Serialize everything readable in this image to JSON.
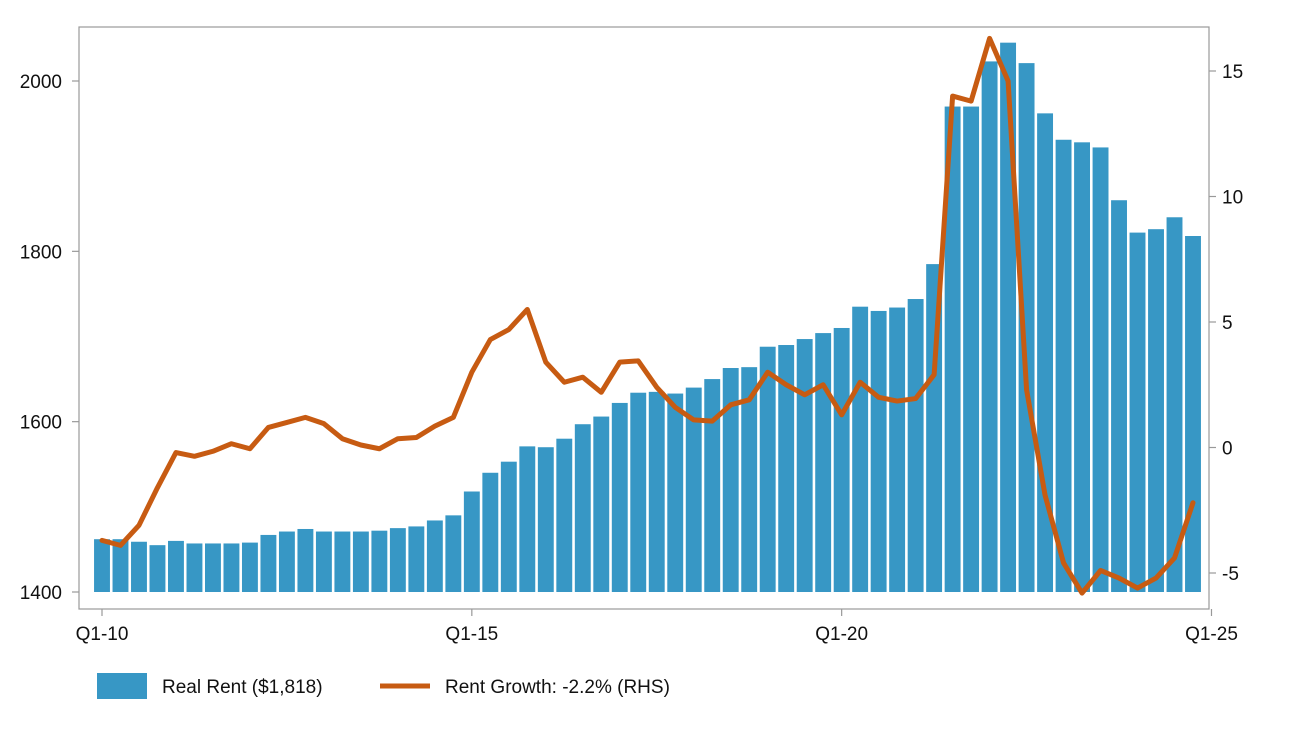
{
  "chart_data": {
    "type": "bar+line",
    "title": "",
    "x_tick_labels": [
      "Q1-10",
      "Q1-15",
      "Q1-20",
      "Q1-25"
    ],
    "y_left": {
      "ticks": [
        1400,
        1600,
        1800,
        2000
      ],
      "range": [
        1390,
        2065
      ]
    },
    "y_right": {
      "ticks": [
        -5,
        0,
        5,
        10,
        15
      ],
      "range": [
        -6.5,
        16.9
      ]
    },
    "grid": false,
    "legend_position": "bottom",
    "colors": {
      "bar": "#3797c5",
      "line": "#c75b12",
      "axis": "#999999"
    },
    "series": [
      {
        "name": "Real Rent ($1,818)",
        "type": "bar",
        "axis": "left",
        "values": [
          1462,
          1462,
          1459,
          1455,
          1460,
          1457,
          1457,
          1457,
          1458,
          1467,
          1471,
          1474,
          1471,
          1471,
          1471,
          1472,
          1475,
          1477,
          1484,
          1490,
          1518,
          1540,
          1553,
          1571,
          1570,
          1580,
          1597,
          1606,
          1622,
          1634,
          1635,
          1633,
          1640,
          1650,
          1663,
          1664,
          1688,
          1690,
          1697,
          1704,
          1710,
          1735,
          1730,
          1734,
          1744,
          1785,
          1970,
          1970,
          2023,
          2045,
          2021,
          1962,
          1931,
          1928,
          1922,
          1860,
          1822,
          1826,
          1840,
          1818
        ]
      },
      {
        "name": "Rent Growth: -2.2% (RHS)",
        "type": "line",
        "axis": "right",
        "values": [
          -3.7,
          -3.9,
          -3.1,
          -1.6,
          -0.2,
          -0.35,
          -0.15,
          0.15,
          -0.05,
          0.8,
          1.0,
          1.2,
          0.95,
          0.35,
          0.1,
          -0.05,
          0.35,
          0.4,
          0.85,
          1.2,
          3.0,
          4.3,
          4.7,
          5.5,
          3.4,
          2.6,
          2.8,
          2.2,
          3.4,
          3.45,
          2.4,
          1.6,
          1.1,
          1.05,
          1.7,
          1.9,
          3.0,
          2.5,
          2.1,
          2.5,
          1.3,
          2.6,
          2.0,
          1.85,
          1.95,
          2.9,
          14.0,
          13.8,
          16.3,
          14.6,
          2.3,
          -1.9,
          -4.6,
          -5.8,
          -4.9,
          -5.2,
          -5.6,
          -5.2,
          -4.4,
          -2.2
        ]
      }
    ]
  }
}
